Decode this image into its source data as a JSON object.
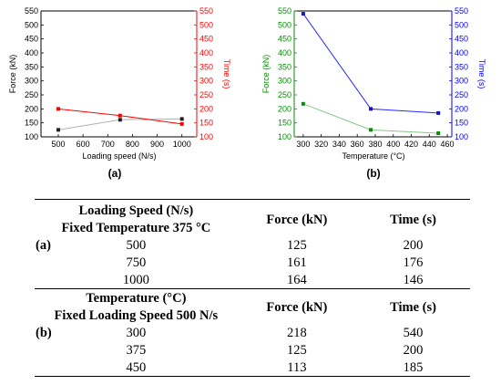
{
  "chart_data": [
    {
      "type": "line",
      "panel_label": "(a)",
      "xlabel": "Loading speed (N/s)",
      "ylabel_left": "Force (kN)",
      "ylabel_right": "Time (s)",
      "x": [
        500,
        750,
        1000
      ],
      "x_ticks": [
        "500",
        "600",
        "700",
        "800",
        "900",
        "1000"
      ],
      "left_ticks": [
        "100",
        "150",
        "200",
        "250",
        "300",
        "350",
        "400",
        "450",
        "500",
        "550"
      ],
      "right_ticks": [
        "100",
        "150",
        "200",
        "250",
        "300",
        "350",
        "400",
        "450",
        "500",
        "550"
      ],
      "xlim": [
        430,
        1060
      ],
      "ylim_left": [
        100,
        550
      ],
      "ylim_right": [
        100,
        550
      ],
      "series": [
        {
          "axis": "left",
          "values": [
            125,
            161,
            164
          ],
          "color": "#222222",
          "line_color": "#b0b0b0"
        },
        {
          "axis": "right",
          "values": [
            200,
            176,
            146
          ],
          "color": "#ff0000",
          "line_color": "#ff0000"
        }
      ],
      "left_axis_color": "#000000",
      "right_axis_color": "#ff0000"
    },
    {
      "type": "line",
      "panel_label": "(b)",
      "xlabel": "Temperature (°C)",
      "ylabel_left": "Force (kN)",
      "ylabel_right": "Time (s)",
      "x": [
        300,
        375,
        450
      ],
      "x_ticks": [
        "300",
        "320",
        "340",
        "360",
        "380",
        "400",
        "420",
        "440",
        "460"
      ],
      "left_ticks": [
        "100",
        "150",
        "200",
        "250",
        "300",
        "350",
        "400",
        "450",
        "500",
        "550"
      ],
      "right_ticks": [
        "100",
        "150",
        "200",
        "250",
        "300",
        "350",
        "400",
        "450",
        "500",
        "550"
      ],
      "xlim": [
        290,
        465
      ],
      "ylim_left": [
        100,
        550
      ],
      "ylim_right": [
        100,
        550
      ],
      "series": [
        {
          "axis": "left",
          "values": [
            218,
            125,
            113
          ],
          "color": "#0a8a0a",
          "line_color": "#86c886"
        },
        {
          "axis": "right",
          "values": [
            540,
            200,
            185
          ],
          "color": "#1414cc",
          "line_color": "#2a2aff"
        }
      ],
      "left_axis_color": "#009000",
      "right_axis_color": "#0000ff"
    }
  ],
  "table": {
    "a": {
      "label": "(a)",
      "header_line1": "Loading Speed (N/s)",
      "header_line2": "Fixed Temperature 375 °C",
      "force_header": "Force (kN)",
      "time_header": "Time (s)",
      "rows": [
        {
          "cond": "500",
          "force": "125",
          "time": "200"
        },
        {
          "cond": "750",
          "force": "161",
          "time": "176"
        },
        {
          "cond": "1000",
          "force": "164",
          "time": "146"
        }
      ]
    },
    "b": {
      "label": "(b)",
      "header_line1": "Temperature (°C)",
      "header_line2": "Fixed Loading Speed 500 N/s",
      "force_header": "Force (kN)",
      "time_header": "Time (s)",
      "rows": [
        {
          "cond": "300",
          "force": "218",
          "time": "540"
        },
        {
          "cond": "375",
          "force": "125",
          "time": "200"
        },
        {
          "cond": "450",
          "force": "113",
          "time": "185"
        }
      ]
    }
  }
}
